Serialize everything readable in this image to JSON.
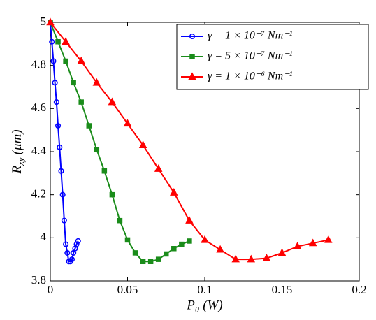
{
  "chart_data": {
    "type": "line",
    "xlabel": "P₀ (W)",
    "ylabel": "R",
    "ylabel_sub": "xy",
    "ylabel_unit": "(μm)",
    "xlim": [
      0,
      0.2
    ],
    "xticks": [
      0,
      0.05,
      0.1,
      0.15,
      0.2
    ],
    "ylim": [
      3.8,
      5
    ],
    "yticks": [
      3.8,
      4,
      4.2,
      4.4,
      4.6,
      4.8,
      5
    ],
    "grid": false,
    "legend": "upper right",
    "series": [
      {
        "name": "γ = 1 × 10⁻⁷ Nm⁻¹",
        "color": "#0000ff",
        "marker": "o",
        "x": [
          0,
          0.001,
          0.002,
          0.003,
          0.004,
          0.005,
          0.006,
          0.007,
          0.008,
          0.009,
          0.01,
          0.011,
          0.012,
          0.013,
          0.014,
          0.015,
          0.016,
          0.017,
          0.018
        ],
        "values": [
          5.0,
          4.91,
          4.82,
          4.72,
          4.63,
          4.52,
          4.42,
          4.31,
          4.2,
          4.08,
          3.97,
          3.93,
          3.89,
          3.89,
          3.9,
          3.93,
          3.95,
          3.97,
          3.985
        ]
      },
      {
        "name": "γ = 5 × 10⁻⁷ Nm⁻¹",
        "color": "#1a8c1a",
        "marker": "s",
        "x": [
          0,
          0.005,
          0.01,
          0.015,
          0.02,
          0.025,
          0.03,
          0.035,
          0.04,
          0.045,
          0.05,
          0.055,
          0.06,
          0.065,
          0.07,
          0.075,
          0.08,
          0.085,
          0.09
        ],
        "values": [
          5.0,
          4.91,
          4.82,
          4.72,
          4.63,
          4.52,
          4.41,
          4.31,
          4.2,
          4.08,
          3.99,
          3.93,
          3.89,
          3.89,
          3.9,
          3.925,
          3.95,
          3.97,
          3.985
        ]
      },
      {
        "name": "γ = 1 × 10⁻⁶ Nm⁻¹",
        "color": "#ff0000",
        "marker": "^",
        "x": [
          0,
          0.01,
          0.02,
          0.03,
          0.04,
          0.05,
          0.06,
          0.07,
          0.08,
          0.09,
          0.1,
          0.11,
          0.12,
          0.13,
          0.14,
          0.15,
          0.16,
          0.17,
          0.18
        ],
        "values": [
          5.0,
          4.91,
          4.82,
          4.72,
          4.63,
          4.53,
          4.43,
          4.32,
          4.21,
          4.08,
          3.99,
          3.945,
          3.9,
          3.9,
          3.905,
          3.93,
          3.96,
          3.975,
          3.99
        ]
      }
    ]
  }
}
